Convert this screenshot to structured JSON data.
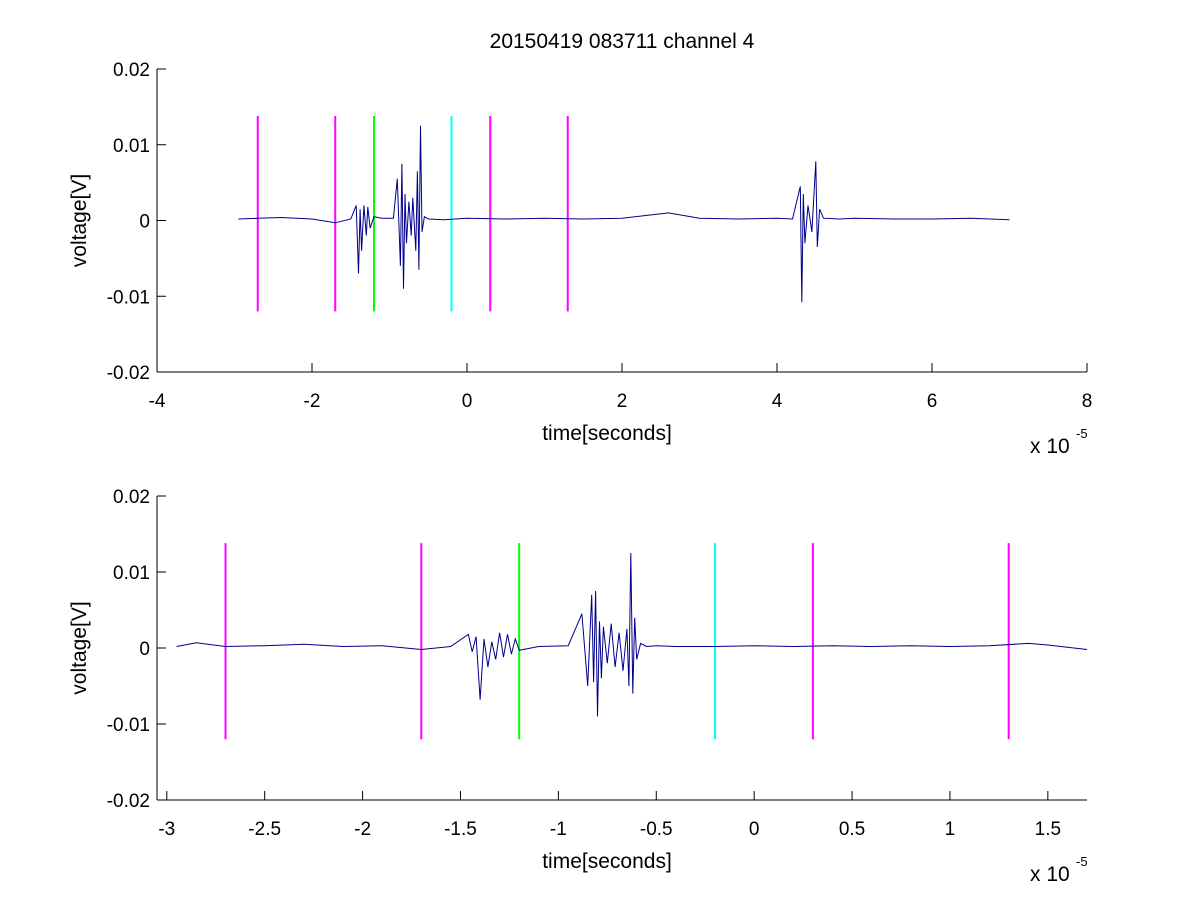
{
  "title": "20150419 083711 channel 4",
  "colors": {
    "signal": "#00008B",
    "marker_magenta": "#FF00FF",
    "marker_green": "#00FF00",
    "marker_cyan": "#00FFFF",
    "axis": "#000000"
  },
  "chart_data": [
    {
      "type": "line",
      "title": "20150419 083711 channel 4",
      "xlabel": "time[seconds]",
      "ylabel": "voltage[V]",
      "x_multiplier": "x 10",
      "x_multiplier_exp": "-5",
      "xlim": [
        -4,
        8
      ],
      "ylim": [
        -0.02,
        0.02
      ],
      "x_ticks": [
        -4,
        -2,
        0,
        2,
        4,
        6,
        8
      ],
      "x_tick_labels": [
        "-4",
        "-2",
        "0",
        "2",
        "4",
        "6",
        "8"
      ],
      "y_ticks": [
        -0.02,
        -0.01,
        0,
        0.01,
        0.02
      ],
      "y_tick_labels": [
        "-0.02",
        "-0.01",
        "0",
        "0.01",
        "0.02"
      ],
      "grid": false,
      "series": [
        {
          "color": "#00008B",
          "x": [
            -2.95,
            -2.7,
            -2.4,
            -2.0,
            -1.7,
            -1.5,
            -1.43,
            -1.4,
            -1.38,
            -1.36,
            -1.33,
            -1.3,
            -1.28,
            -1.25,
            -1.2,
            -1.1,
            -0.95,
            -0.9,
            -0.86,
            -0.84,
            -0.82,
            -0.8,
            -0.78,
            -0.75,
            -0.72,
            -0.7,
            -0.66,
            -0.64,
            -0.62,
            -0.6,
            -0.58,
            -0.55,
            -0.5,
            -0.3,
            0.0,
            0.5,
            1.0,
            1.5,
            2.0,
            2.6,
            3.0,
            3.5,
            4.0,
            4.2,
            4.3,
            4.32,
            4.34,
            4.36,
            4.4,
            4.45,
            4.5,
            4.52,
            4.55,
            4.6,
            4.8,
            5.0,
            5.5,
            6.0,
            6.5,
            7.0
          ],
          "y": [
            0.0002,
            0.0003,
            0.0004,
            0.0002,
            -0.0003,
            0.0002,
            0.002,
            -0.007,
            0.0015,
            -0.004,
            0.002,
            -0.002,
            0.0018,
            -0.001,
            0.0005,
            0.0003,
            0.0003,
            0.0055,
            -0.006,
            0.0075,
            -0.009,
            0.0035,
            -0.003,
            0.0025,
            -0.002,
            0.003,
            -0.004,
            0.0065,
            -0.0065,
            0.0125,
            -0.0015,
            0.0005,
            0.0002,
            0.0001,
            0.0003,
            0.0002,
            0.0003,
            0.0002,
            0.0003,
            0.001,
            0.0003,
            0.0002,
            0.0003,
            0.0002,
            0.0045,
            -0.0108,
            0.0035,
            -0.003,
            0.002,
            -0.0015,
            0.0078,
            -0.0035,
            0.0015,
            0.0003,
            0.0002,
            0.0003,
            0.0002,
            0.0002,
            0.0003,
            0.0001
          ]
        }
      ],
      "markers": [
        {
          "x": -2.7,
          "color": "#FF00FF"
        },
        {
          "x": -1.7,
          "color": "#FF00FF"
        },
        {
          "x": -1.2,
          "color": "#00FF00"
        },
        {
          "x": -0.2,
          "color": "#00FFFF"
        },
        {
          "x": 0.3,
          "color": "#FF00FF"
        },
        {
          "x": 1.3,
          "color": "#FF00FF"
        }
      ],
      "marker_y_range": [
        -0.012,
        0.0138
      ]
    },
    {
      "type": "line",
      "xlabel": "time[seconds]",
      "ylabel": "voltage[V]",
      "x_multiplier": "x 10",
      "x_multiplier_exp": "-5",
      "xlim": [
        -3.05,
        1.7
      ],
      "ylim": [
        -0.02,
        0.02
      ],
      "x_ticks": [
        -3,
        -2.5,
        -2,
        -1.5,
        -1,
        -0.5,
        0,
        0.5,
        1,
        1.5
      ],
      "x_tick_labels": [
        "-3",
        "-2.5",
        "-2",
        "-1.5",
        "-1",
        "-0.5",
        "0",
        "0.5",
        "1",
        "1.5"
      ],
      "y_ticks": [
        -0.02,
        -0.01,
        0,
        0.01,
        0.02
      ],
      "y_tick_labels": [
        "-0.02",
        "-0.01",
        "0",
        "0.01",
        "0.02"
      ],
      "grid": false,
      "series": [
        {
          "color": "#00008B",
          "x": [
            -2.95,
            -2.85,
            -2.7,
            -2.5,
            -2.3,
            -2.1,
            -1.9,
            -1.7,
            -1.55,
            -1.46,
            -1.44,
            -1.42,
            -1.4,
            -1.38,
            -1.36,
            -1.34,
            -1.32,
            -1.3,
            -1.28,
            -1.26,
            -1.24,
            -1.22,
            -1.2,
            -1.1,
            -0.95,
            -0.88,
            -0.85,
            -0.83,
            -0.82,
            -0.81,
            -0.8,
            -0.79,
            -0.78,
            -0.77,
            -0.75,
            -0.73,
            -0.71,
            -0.69,
            -0.67,
            -0.65,
            -0.64,
            -0.63,
            -0.62,
            -0.61,
            -0.6,
            -0.58,
            -0.55,
            -0.5,
            -0.4,
            -0.2,
            0.0,
            0.2,
            0.4,
            0.6,
            0.8,
            1.0,
            1.2,
            1.4,
            1.5,
            1.7
          ],
          "y": [
            0.0002,
            0.0007,
            0.0002,
            0.0003,
            0.0005,
            0.0002,
            0.0003,
            -0.0002,
            0.0002,
            0.0018,
            -0.0005,
            0.0015,
            -0.0068,
            0.0012,
            -0.0025,
            0.0008,
            -0.0015,
            0.002,
            -0.0012,
            0.0018,
            -0.0008,
            0.0012,
            -0.0003,
            0.0002,
            0.0003,
            0.0045,
            -0.005,
            0.007,
            -0.0045,
            0.0075,
            -0.009,
            0.0035,
            -0.004,
            0.0028,
            -0.002,
            0.0032,
            -0.0025,
            0.002,
            -0.003,
            0.0025,
            -0.005,
            0.0125,
            -0.006,
            0.004,
            -0.0015,
            0.0006,
            0.0002,
            0.0003,
            0.0002,
            0.0002,
            0.0003,
            0.0002,
            0.0003,
            0.0002,
            0.0003,
            0.0002,
            0.0003,
            0.0006,
            0.0004,
            -0.0002
          ]
        }
      ],
      "markers": [
        {
          "x": -2.7,
          "color": "#FF00FF"
        },
        {
          "x": -1.7,
          "color": "#FF00FF"
        },
        {
          "x": -1.2,
          "color": "#00FF00"
        },
        {
          "x": -0.2,
          "color": "#00FFFF"
        },
        {
          "x": 0.3,
          "color": "#FF00FF"
        },
        {
          "x": 1.3,
          "color": "#FF00FF"
        }
      ],
      "marker_y_range": [
        -0.012,
        0.0138
      ]
    }
  ]
}
